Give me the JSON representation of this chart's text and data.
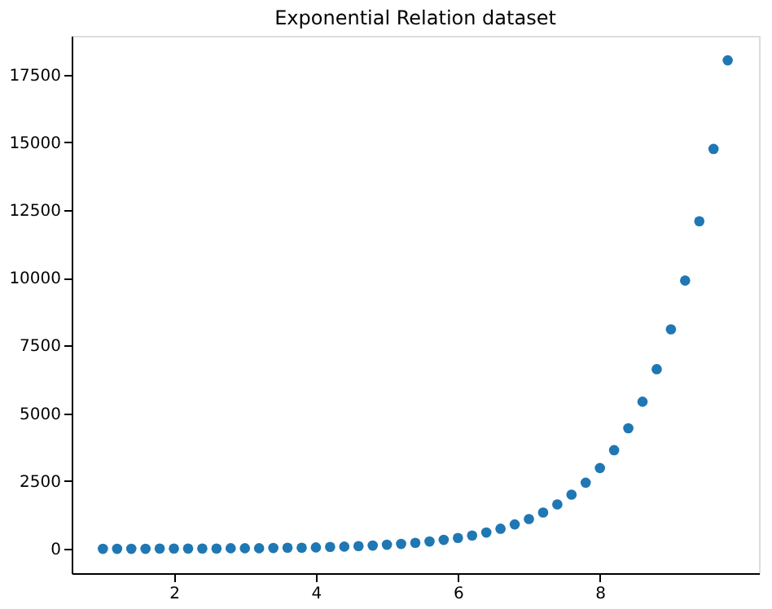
{
  "chart_data": {
    "type": "scatter",
    "title": "Exponential Relation dataset",
    "x": [
      1.0,
      1.2,
      1.4,
      1.6,
      1.8,
      2.0,
      2.2,
      2.4,
      2.6,
      2.8,
      3.0,
      3.2,
      3.4,
      3.6,
      3.8,
      4.0,
      4.2,
      4.4,
      4.6,
      4.8,
      5.0,
      5.2,
      5.4,
      5.6,
      5.8,
      6.0,
      6.2,
      6.4,
      6.6,
      6.8,
      7.0,
      7.2,
      7.4,
      7.6,
      7.8,
      8.0,
      8.2,
      8.4,
      8.6,
      8.8,
      9.0,
      9.2,
      9.4,
      9.6,
      9.8
    ],
    "series": [
      {
        "color": "#1f77b4",
        "values": [
          0,
          0,
          0,
          0,
          10,
          10,
          10,
          10,
          10,
          20,
          20,
          20,
          30,
          40,
          40,
          50,
          70,
          80,
          100,
          120,
          150,
          180,
          220,
          270,
          330,
          400,
          490,
          600,
          740,
          900,
          1100,
          1340,
          1640,
          2000,
          2440,
          2980,
          3640,
          4450,
          5430,
          6630,
          8100,
          9900,
          12090,
          14760,
          18030
        ]
      }
    ],
    "xlim": [
      0.56,
      10.24
    ],
    "ylim": [
      -900,
      18935
    ],
    "xticks": [
      2,
      4,
      6,
      8
    ],
    "yticks": [
      0,
      2500,
      5000,
      7500,
      10000,
      12500,
      15000,
      17500
    ],
    "grid": false,
    "legend": false,
    "marker": "circle"
  }
}
